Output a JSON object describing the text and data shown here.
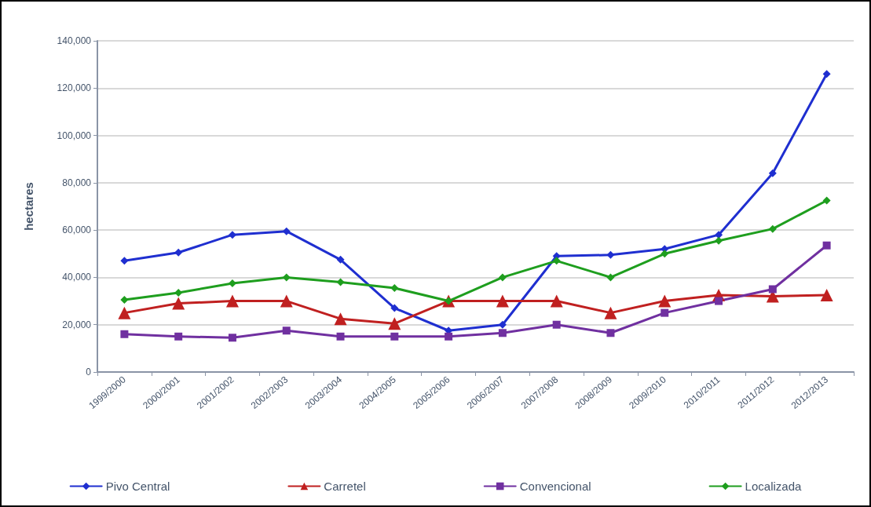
{
  "chart_data": {
    "type": "line",
    "ylabel": "hectares",
    "categories": [
      "1999/2000",
      "2000/2001",
      "2001/2002",
      "2002/2003",
      "2003/2004",
      "2004/2005",
      "2005/2006",
      "2006/2007",
      "2007/2008",
      "2008/2009",
      "2009/2010",
      "2010/2011",
      "2011/2012",
      "2012/2013"
    ],
    "series": [
      {
        "name": "Pivo Central",
        "color": "#1f2fd0",
        "marker": "diamond",
        "values": [
          47000,
          50500,
          58000,
          59500,
          47500,
          27000,
          17500,
          20000,
          49000,
          49500,
          52000,
          58000,
          84000,
          126000
        ]
      },
      {
        "name": "Carretel",
        "color": "#c02020",
        "marker": "triangle",
        "values": [
          25000,
          29000,
          30000,
          30000,
          22500,
          20500,
          30000,
          30000,
          30000,
          25000,
          30000,
          32500,
          32000,
          32500
        ]
      },
      {
        "name": "Convencional",
        "color": "#7030a0",
        "marker": "square",
        "values": [
          16000,
          15000,
          14500,
          17500,
          15000,
          15000,
          15000,
          16500,
          20000,
          16500,
          25000,
          30000,
          35000,
          53500
        ]
      },
      {
        "name": "Localizada",
        "color": "#1e9e1e",
        "marker": "diamond",
        "values": [
          30500,
          33500,
          37500,
          40000,
          38000,
          35500,
          30000,
          40000,
          47000,
          40000,
          50000,
          55500,
          60500,
          72500
        ]
      }
    ],
    "ylim": [
      0,
      140000
    ],
    "yticks": [
      0,
      {
        "value": 20000,
        "label": "20,000"
      },
      {
        "value": 40000,
        "label": "40,000"
      },
      {
        "value": 60000,
        "label": "60,000"
      },
      {
        "value": 80000,
        "label": "80,000"
      },
      {
        "value": 100000,
        "label": "100,000"
      },
      {
        "value": 120000,
        "label": "120,000"
      },
      {
        "value": 140000,
        "label": "140,000"
      }
    ],
    "grid": "y",
    "legend": "bottom",
    "line_style": "solid"
  }
}
